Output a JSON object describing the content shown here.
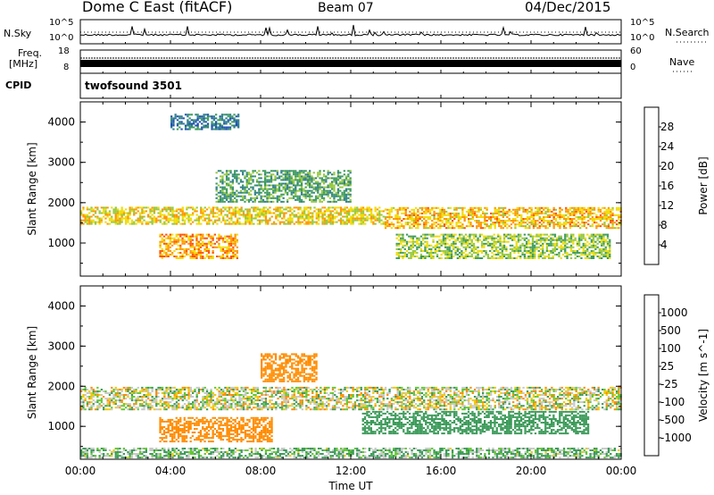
{
  "header": {
    "station": "Dome C East (fitACF)",
    "beam": "Beam 07",
    "date": "04/Dec/2015"
  },
  "panels": {
    "nsky": {
      "label": "N.Sky",
      "ticks": [
        "10^5",
        "10^0"
      ],
      "right_label": "N.Search",
      "right_ticks": [
        "10^5",
        "10^0"
      ]
    },
    "freq": {
      "label_top": "Freq.",
      "label_unit": "[MHz]",
      "ticks": [
        "18",
        "8"
      ],
      "right_label": "Nave",
      "right_ticks": [
        "60",
        "0"
      ]
    },
    "cpid": {
      "label": "CPID",
      "value": "twofsound 3501"
    }
  },
  "chart_data": [
    {
      "type": "heatmap",
      "name": "power",
      "xlabel": "",
      "ylabel": "Slant Range [km]",
      "xlim": [
        "00:00",
        "24:00"
      ],
      "ylim": [
        180,
        4500
      ],
      "y_ticks": [
        "4000",
        "3000",
        "2000",
        "1000"
      ],
      "colorbar": {
        "label": "Power [dB]",
        "ticks": [
          "28",
          "24",
          "20",
          "16",
          "12",
          "8",
          "4"
        ],
        "levels": [
          0,
          4,
          8,
          12,
          16,
          20,
          24,
          28,
          32
        ],
        "colors": [
          "#0000ff",
          "#1e50b4",
          "#2e7d8c",
          "#3c9b5a",
          "#96c83c",
          "#f0dc00",
          "#ff9600",
          "#ff5000",
          "#e60000"
        ]
      },
      "bands": [
        {
          "start": "00:00",
          "end": "13:30",
          "range_low": 1450,
          "range_high": 1900,
          "power": 22
        },
        {
          "start": "13:30",
          "end": "24:00",
          "range_low": 1350,
          "range_high": 1850,
          "power": 24
        },
        {
          "start": "03:30",
          "end": "07:00",
          "range_low": 600,
          "range_high": 1200,
          "power": 26
        },
        {
          "start": "06:00",
          "end": "12:00",
          "range_low": 2000,
          "range_high": 2800,
          "power": 14
        },
        {
          "start": "14:00",
          "end": "23:30",
          "range_low": 600,
          "range_high": 1200,
          "power": 18
        },
        {
          "start": "04:00",
          "end": "07:00",
          "range_low": 3800,
          "range_high": 4200,
          "power": 10
        }
      ]
    },
    {
      "type": "heatmap",
      "name": "velocity",
      "xlabel": "Time UT",
      "ylabel": "Slant Range [km]",
      "xlim": [
        "00:00",
        "24:00"
      ],
      "ylim": [
        180,
        4500
      ],
      "x_ticks": [
        "00:00",
        "04:00",
        "08:00",
        "12:00",
        "16:00",
        "20:00",
        "00:00"
      ],
      "y_ticks": [
        "4000",
        "3000",
        "2000",
        "1000"
      ],
      "colorbar": {
        "label": "Velocity [m s^-1]",
        "ticks": [
          "1000",
          "500",
          "100",
          "25",
          "-25",
          "-100",
          "-500",
          "-1000"
        ],
        "colors": [
          "#2040c0",
          "#2e6e8c",
          "#3c9b5a",
          "#64c832",
          "#c8c8c8",
          "#f0c800",
          "#ff8c00",
          "#ff5000",
          "#e60000"
        ]
      },
      "bands": [
        {
          "start": "00:00",
          "end": "24:00",
          "range_low": 1400,
          "range_high": 1950,
          "velocity": 0
        },
        {
          "start": "03:30",
          "end": "08:30",
          "range_low": 600,
          "range_high": 1200,
          "velocity": -150
        },
        {
          "start": "08:00",
          "end": "10:30",
          "range_low": 2100,
          "range_high": 2800,
          "velocity": -150
        },
        {
          "start": "12:30",
          "end": "22:30",
          "range_low": 800,
          "range_high": 1350,
          "velocity": 150
        },
        {
          "start": "00:00",
          "end": "24:00",
          "range_low": 200,
          "range_high": 450,
          "velocity": 60
        }
      ]
    }
  ]
}
